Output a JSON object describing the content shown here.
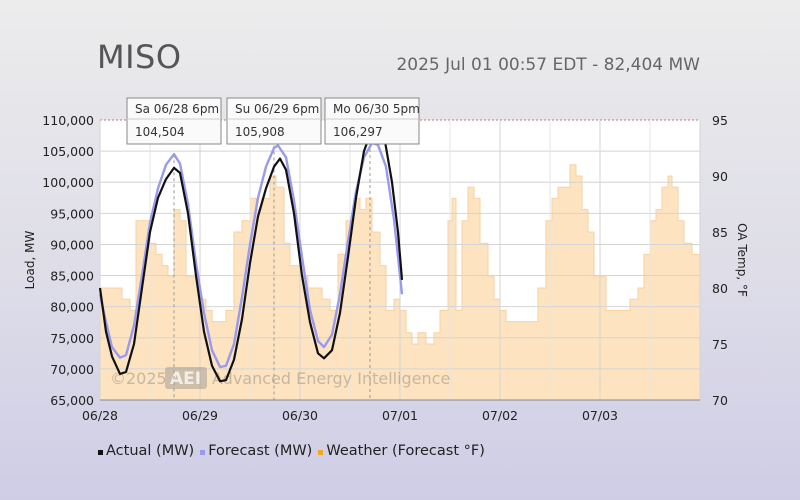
{
  "header": {
    "title": "MISO",
    "status": "2025 Jul 01 00:57 EDT - 82,404 MW"
  },
  "watermark": {
    "copyright": "©2025",
    "logo": "AEI",
    "company": "Advanced Energy Intelligence"
  },
  "colors": {
    "actual": "#111111",
    "forecast": "#9999ee",
    "weather_fill": "#fde3c0",
    "weather_stroke": "#f7d2a0",
    "weather_legend": "#f5a623"
  },
  "chart_data": {
    "type": "line",
    "title": "MISO",
    "xlabel": "",
    "ylabel": "Load, MW",
    "y2label": "OA Temp, °F",
    "ylim": [
      65000,
      110000
    ],
    "y2lim": [
      70,
      95
    ],
    "xlim": [
      0,
      6
    ],
    "x_tick_labels": [
      "06/28",
      "06/29",
      "06/30",
      "07/01",
      "07/02",
      "07/03"
    ],
    "y_tick_labels": [
      "65,000",
      "70,000",
      "75,000",
      "80,000",
      "85,000",
      "90,000",
      "95,000",
      "100,000",
      "105,000",
      "110,000"
    ],
    "y2_tick_labels": [
      "70",
      "75",
      "80",
      "85",
      "90",
      "95"
    ],
    "legend_position": "bottom",
    "grid": true,
    "series": [
      {
        "name": "Actual (MW)",
        "points": [
          [
            0,
            83000
          ],
          [
            0.06,
            76000
          ],
          [
            0.12,
            72000
          ],
          [
            0.2,
            69200
          ],
          [
            0.26,
            69500
          ],
          [
            0.34,
            74000
          ],
          [
            0.42,
            83000
          ],
          [
            0.5,
            92000
          ],
          [
            0.58,
            97500
          ],
          [
            0.66,
            100500
          ],
          [
            0.74,
            102300
          ],
          [
            0.8,
            101500
          ],
          [
            0.88,
            95000
          ],
          [
            0.96,
            85000
          ],
          [
            1.04,
            76000
          ],
          [
            1.12,
            70500
          ],
          [
            1.2,
            68000
          ],
          [
            1.26,
            68200
          ],
          [
            1.34,
            71500
          ],
          [
            1.42,
            78000
          ],
          [
            1.5,
            87000
          ],
          [
            1.58,
            94500
          ],
          [
            1.66,
            99000
          ],
          [
            1.74,
            102500
          ],
          [
            1.8,
            103800
          ],
          [
            1.86,
            102000
          ],
          [
            1.94,
            95000
          ],
          [
            2.02,
            85000
          ],
          [
            2.1,
            77500
          ],
          [
            2.18,
            72500
          ],
          [
            2.24,
            71700
          ],
          [
            2.32,
            73000
          ],
          [
            2.4,
            79000
          ],
          [
            2.48,
            88000
          ],
          [
            2.56,
            97500
          ],
          [
            2.64,
            105000
          ],
          [
            2.72,
            108500
          ],
          [
            2.78,
            109000
          ],
          [
            2.84,
            107500
          ],
          [
            2.92,
            100000
          ],
          [
            2.98,
            92000
          ],
          [
            3.02,
            84300
          ]
        ]
      },
      {
        "name": "Forecast (MW)",
        "points": [
          [
            0,
            82000
          ],
          [
            0.06,
            77500
          ],
          [
            0.12,
            73500
          ],
          [
            0.2,
            71800
          ],
          [
            0.26,
            72200
          ],
          [
            0.34,
            77000
          ],
          [
            0.42,
            85000
          ],
          [
            0.5,
            93500
          ],
          [
            0.58,
            99000
          ],
          [
            0.66,
            102800
          ],
          [
            0.74,
            104500
          ],
          [
            0.8,
            103000
          ],
          [
            0.88,
            96500
          ],
          [
            0.96,
            87000
          ],
          [
            1.04,
            79000
          ],
          [
            1.12,
            73000
          ],
          [
            1.2,
            70300
          ],
          [
            1.26,
            70500
          ],
          [
            1.34,
            74000
          ],
          [
            1.42,
            81500
          ],
          [
            1.5,
            90000
          ],
          [
            1.58,
            97500
          ],
          [
            1.66,
            102500
          ],
          [
            1.74,
            105500
          ],
          [
            1.78,
            105900
          ],
          [
            1.86,
            104000
          ],
          [
            1.94,
            97000
          ],
          [
            2.02,
            88000
          ],
          [
            2.1,
            79500
          ],
          [
            2.18,
            74500
          ],
          [
            2.24,
            73500
          ],
          [
            2.32,
            75500
          ],
          [
            2.4,
            82000
          ],
          [
            2.48,
            90500
          ],
          [
            2.56,
            98500
          ],
          [
            2.64,
            104000
          ],
          [
            2.72,
            106300
          ],
          [
            2.78,
            106000
          ],
          [
            2.86,
            102500
          ],
          [
            2.94,
            94000
          ],
          [
            3.0,
            85000
          ],
          [
            3.02,
            82000
          ]
        ]
      },
      {
        "name": "Weather (Forecast °F)",
        "axis": "right",
        "points": [
          [
            0,
            80
          ],
          [
            0.18,
            80
          ],
          [
            0.22,
            79
          ],
          [
            0.3,
            78
          ],
          [
            0.36,
            86
          ],
          [
            0.44,
            86
          ],
          [
            0.5,
            84
          ],
          [
            0.56,
            83
          ],
          [
            0.62,
            82
          ],
          [
            0.68,
            81
          ],
          [
            0.74,
            87
          ],
          [
            0.8,
            86
          ],
          [
            0.86,
            81
          ],
          [
            0.94,
            81
          ],
          [
            1.0,
            79
          ],
          [
            1.06,
            78
          ],
          [
            1.12,
            77
          ],
          [
            1.2,
            77
          ],
          [
            1.26,
            78
          ],
          [
            1.34,
            85
          ],
          [
            1.42,
            86
          ],
          [
            1.5,
            88
          ],
          [
            1.56,
            87
          ],
          [
            1.62,
            88
          ],
          [
            1.7,
            90
          ],
          [
            1.76,
            89
          ],
          [
            1.84,
            84
          ],
          [
            1.9,
            82
          ],
          [
            2.0,
            81
          ],
          [
            2.08,
            80
          ],
          [
            2.16,
            80
          ],
          [
            2.22,
            79
          ],
          [
            2.3,
            78
          ],
          [
            2.38,
            83
          ],
          [
            2.46,
            86
          ],
          [
            2.54,
            88
          ],
          [
            2.6,
            87
          ],
          [
            2.66,
            88
          ],
          [
            2.72,
            85
          ],
          [
            2.8,
            82
          ],
          [
            2.86,
            78
          ],
          [
            2.94,
            79
          ],
          [
            3.0,
            78
          ],
          [
            3.06,
            76
          ],
          [
            3.12,
            75
          ],
          [
            3.18,
            76
          ],
          [
            3.26,
            75
          ],
          [
            3.34,
            76
          ],
          [
            3.4,
            78
          ],
          [
            3.48,
            86
          ],
          [
            3.52,
            88
          ],
          [
            3.56,
            78
          ],
          [
            3.62,
            86
          ],
          [
            3.68,
            89
          ],
          [
            3.74,
            88
          ],
          [
            3.8,
            84
          ],
          [
            3.88,
            81
          ],
          [
            3.94,
            79
          ],
          [
            4.0,
            78
          ],
          [
            4.06,
            77
          ],
          [
            4.14,
            77
          ],
          [
            4.24,
            77
          ],
          [
            4.3,
            77
          ],
          [
            4.38,
            80
          ],
          [
            4.46,
            86
          ],
          [
            4.52,
            88
          ],
          [
            4.58,
            89
          ],
          [
            4.64,
            89
          ],
          [
            4.7,
            91
          ],
          [
            4.76,
            90
          ],
          [
            4.82,
            87
          ],
          [
            4.88,
            85
          ],
          [
            4.94,
            81
          ],
          [
            5.0,
            81
          ],
          [
            5.06,
            78
          ],
          [
            5.14,
            78
          ],
          [
            5.24,
            78
          ],
          [
            5.3,
            79
          ],
          [
            5.38,
            80
          ],
          [
            5.44,
            83
          ],
          [
            5.5,
            86
          ],
          [
            5.56,
            87
          ],
          [
            5.62,
            89
          ],
          [
            5.68,
            90
          ],
          [
            5.72,
            89
          ],
          [
            5.78,
            86
          ],
          [
            5.84,
            84
          ],
          [
            5.92,
            83
          ],
          [
            6.0,
            83
          ]
        ]
      }
    ],
    "annotations": [
      {
        "date": "Sa 06/28 6pm",
        "value": "104,504",
        "x": 0.74,
        "y": 104504
      },
      {
        "date": "Su 06/29 6pm",
        "value": "105,908",
        "x": 1.74,
        "y": 105908
      },
      {
        "date": "Mo 06/30 5pm",
        "value": "106,297",
        "x": 2.7,
        "y": 106297
      }
    ]
  },
  "legend": {
    "items": [
      {
        "label": "Actual (MW)",
        "color": "#111111"
      },
      {
        "label": "Forecast (MW)",
        "color": "#9999ee"
      },
      {
        "label": "Weather (Forecast °F)",
        "color": "#f5a623"
      }
    ]
  }
}
